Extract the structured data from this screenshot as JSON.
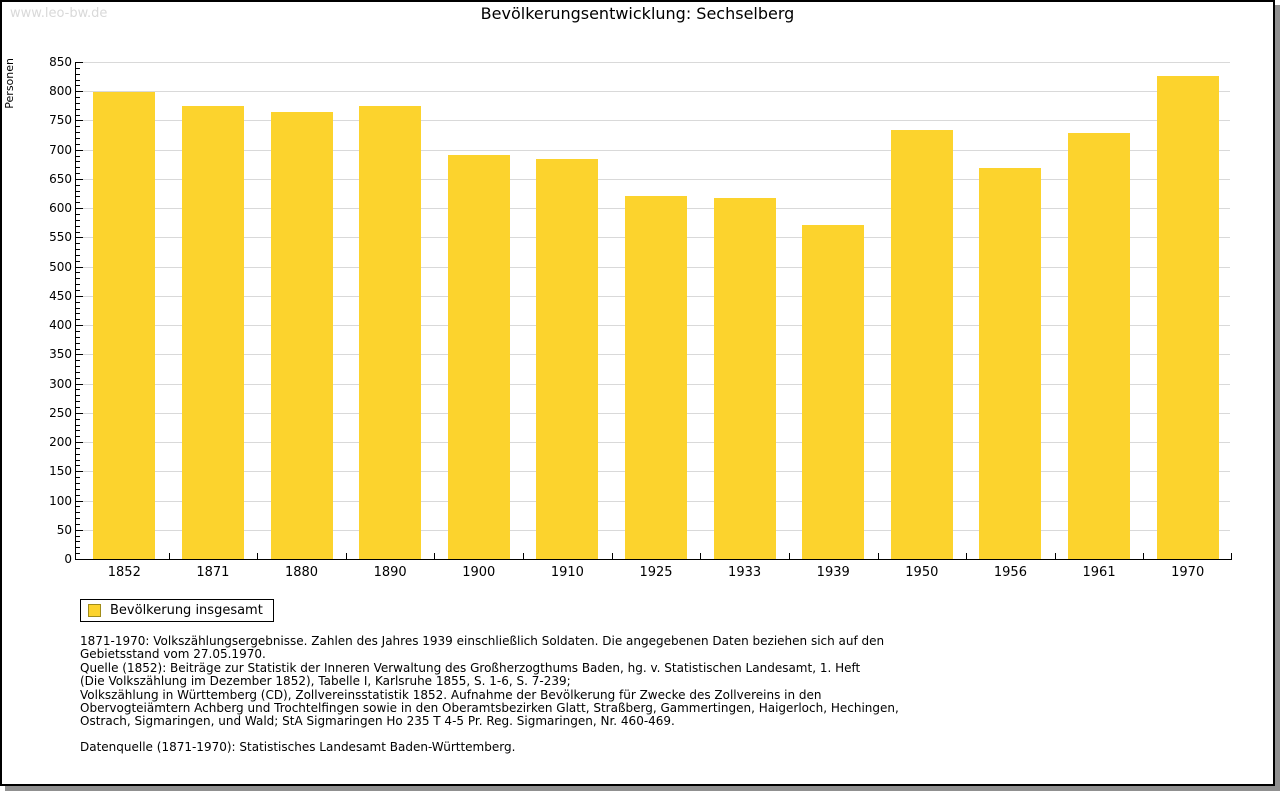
{
  "watermark": "www.leo-bw.de",
  "chart_data": {
    "type": "bar",
    "title": "Bevölkerungsentwicklung: Sechselberg",
    "xlabel": "",
    "ylabel": "Personen",
    "categories": [
      "1852",
      "1871",
      "1880",
      "1890",
      "1900",
      "1910",
      "1925",
      "1933",
      "1939",
      "1950",
      "1956",
      "1961",
      "1970"
    ],
    "values": [
      798,
      775,
      765,
      774,
      691,
      684,
      620,
      618,
      571,
      734,
      668,
      728,
      826
    ],
    "ylim": [
      0,
      850
    ],
    "ytick_step": 50,
    "yminor_step": 10,
    "grid": true,
    "legend_position": "bottom-left",
    "legend_entries": [
      "Bevölkerung insgesamt"
    ]
  },
  "legend": {
    "label": "Bevölkerung insgesamt"
  },
  "notes": {
    "lines": [
      "1871-1970: Volkszählungsergebnisse. Zahlen des Jahres 1939 einschließlich Soldaten. Die angegebenen Daten beziehen sich auf den",
      "Gebietsstand vom 27.05.1970.",
      "Quelle (1852): Beiträge zur Statistik der Inneren Verwaltung des Großherzogthums Baden, hg. v. Statistischen Landesamt, 1. Heft",
      "(Die Volkszählung im Dezember 1852), Tabelle I, Karlsruhe 1855, S. 1-6, S. 7-239;",
      "Volkszählung in Württemberg (CD), Zollvereinsstatistik 1852. Aufnahme der Bevölkerung für Zwecke des Zollvereins in den",
      "Obervogteiämtern Achberg und Trochtelfingen sowie in den Oberamtsbezirken Glatt, Straßberg, Gammertingen, Haigerloch, Hechingen,",
      "Ostrach, Sigmaringen, und Wald; StA Sigmaringen Ho 235 T 4-5 Pr. Reg. Sigmaringen, Nr. 460-469."
    ],
    "datasource": "Datenquelle (1871-1970): Statistisches Landesamt Baden-Württemberg."
  },
  "colors": {
    "bar": "#FCD32D",
    "swatch_border": "#A08C1A",
    "grid": "#D9D9D9",
    "watermark": "#D9D9D9",
    "shadow": "#909090",
    "axis": "#000000"
  }
}
